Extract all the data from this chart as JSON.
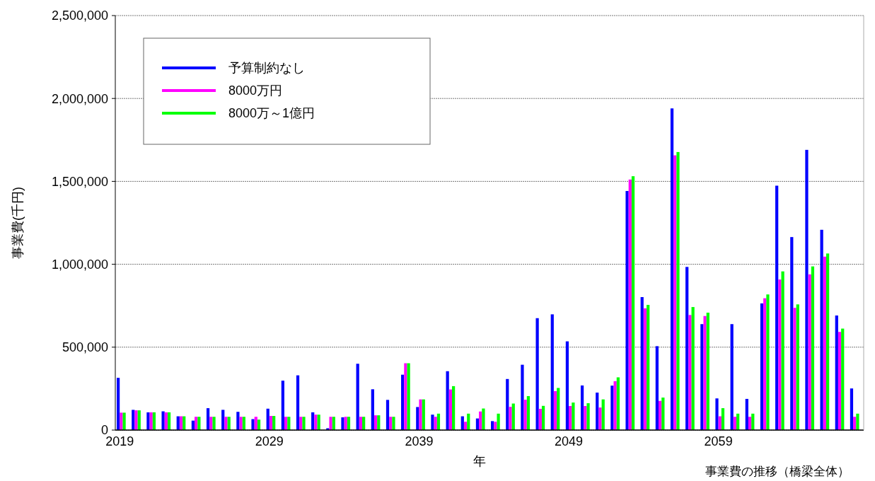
{
  "chart_data": {
    "type": "bar",
    "categories": [
      "2019",
      null,
      null,
      null,
      null,
      null,
      null,
      null,
      null,
      null,
      "2029",
      null,
      null,
      null,
      null,
      null,
      null,
      null,
      null,
      null,
      "2039",
      null,
      null,
      null,
      null,
      null,
      null,
      null,
      null,
      null,
      "2049",
      null,
      null,
      null,
      null,
      null,
      null,
      null,
      null,
      null,
      "2059",
      null,
      null,
      null,
      null,
      null,
      null,
      null,
      null,
      null
    ],
    "series": [
      {
        "name": "予算制約なし",
        "color": "#0000ff",
        "values": [
          315000,
          122000,
          107000,
          113000,
          83000,
          57000,
          132000,
          122000,
          110000,
          66000,
          129000,
          298000,
          330000,
          107000,
          11000,
          77000,
          400000,
          246000,
          182000,
          334000,
          139000,
          93000,
          355000,
          83000,
          70000,
          54000,
          308000,
          394000,
          675000,
          698000,
          535000,
          269000,
          226000,
          268000,
          1442000,
          802000,
          506000,
          1940000,
          984000,
          639000,
          191000,
          639000,
          188000,
          764000,
          1474000,
          1164000,
          1690000,
          1208000,
          691000,
          251000
        ]
      },
      {
        "name": "8000万円",
        "color": "#ff00ff",
        "values": [
          105000,
          119000,
          107000,
          107000,
          83000,
          80000,
          80000,
          80000,
          80000,
          80000,
          85000,
          80000,
          80000,
          93000,
          80000,
          80000,
          80000,
          89000,
          80000,
          403000,
          185000,
          80000,
          245000,
          50000,
          112000,
          50000,
          140000,
          183000,
          128000,
          235000,
          145000,
          145000,
          136000,
          295000,
          1511000,
          734000,
          176000,
          1657000,
          694000,
          688000,
          83000,
          80000,
          80000,
          795000,
          908000,
          737000,
          939000,
          1046000,
          592000,
          80000
        ]
      },
      {
        "name": "8000万～1億円",
        "color": "#00ff00",
        "values": [
          105000,
          119000,
          107000,
          107000,
          83000,
          80000,
          80000,
          80000,
          80000,
          63000,
          85000,
          80000,
          80000,
          93000,
          80000,
          80000,
          80000,
          89000,
          80000,
          403000,
          185000,
          99000,
          265000,
          99000,
          130000,
          99000,
          160000,
          205000,
          146000,
          254000,
          166000,
          162000,
          185000,
          318000,
          1531000,
          755000,
          196000,
          1677000,
          742000,
          708000,
          132000,
          99000,
          99000,
          818000,
          957000,
          758000,
          987000,
          1065000,
          612000,
          99000
        ]
      }
    ],
    "ylim": [
      0,
      2500000
    ],
    "yticks": [
      {
        "value": 0,
        "label": "0"
      },
      {
        "value": 500000,
        "label": "500,000"
      },
      {
        "value": 1000000,
        "label": "1,000,000"
      },
      {
        "value": 1500000,
        "label": "1,500,000"
      },
      {
        "value": 2000000,
        "label": "2,000,000"
      },
      {
        "value": 2500000,
        "label": "2,500,000"
      }
    ],
    "grid": "y",
    "legend": "top left",
    "xlabel": "年",
    "ylabel": "事業費(千円)",
    "annotations": [
      "事業費の推移（橋梁全体）"
    ]
  }
}
